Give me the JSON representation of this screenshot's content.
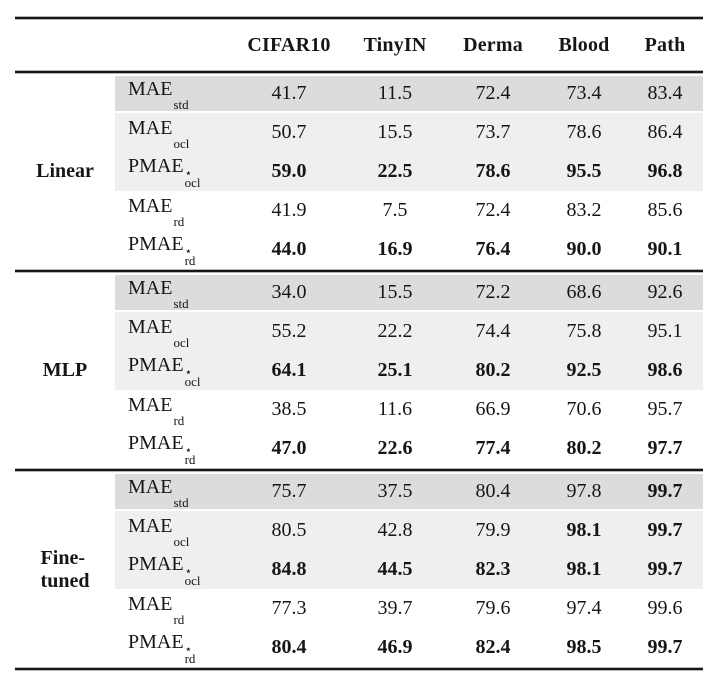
{
  "table": {
    "columns": [
      "CIFAR10",
      "TinyIN",
      "Derma",
      "Blood",
      "Path"
    ],
    "shading": {
      "dark": "#dcdcdc",
      "light": "#efefef"
    },
    "groups": [
      {
        "label": "Linear",
        "rows": [
          {
            "base": "MAE",
            "sup": "",
            "sub": "std",
            "values": [
              "41.7",
              "11.5",
              "72.4",
              "73.4",
              "83.4"
            ],
            "bold": [
              false,
              false,
              false,
              false,
              false
            ]
          },
          {
            "base": "MAE",
            "sup": "",
            "sub": "ocl",
            "values": [
              "50.7",
              "15.5",
              "73.7",
              "78.6",
              "86.4"
            ],
            "bold": [
              false,
              false,
              false,
              false,
              false
            ]
          },
          {
            "base": "PMAE",
            "sup": "⋆",
            "sub": "ocl",
            "values": [
              "59.0",
              "22.5",
              "78.6",
              "95.5",
              "96.8"
            ],
            "bold": [
              true,
              true,
              true,
              true,
              true
            ]
          },
          {
            "base": "MAE",
            "sup": "",
            "sub": "rd",
            "values": [
              "41.9",
              "7.5",
              "72.4",
              "83.2",
              "85.6"
            ],
            "bold": [
              false,
              false,
              false,
              false,
              false
            ]
          },
          {
            "base": "PMAE",
            "sup": "⋆",
            "sub": "rd",
            "values": [
              "44.0",
              "16.9",
              "76.4",
              "90.0",
              "90.1"
            ],
            "bold": [
              true,
              true,
              true,
              true,
              true
            ]
          }
        ]
      },
      {
        "label": "MLP",
        "rows": [
          {
            "base": "MAE",
            "sup": "",
            "sub": "std",
            "values": [
              "34.0",
              "15.5",
              "72.2",
              "68.6",
              "92.6"
            ],
            "bold": [
              false,
              false,
              false,
              false,
              false
            ]
          },
          {
            "base": "MAE",
            "sup": "",
            "sub": "ocl",
            "values": [
              "55.2",
              "22.2",
              "74.4",
              "75.8",
              "95.1"
            ],
            "bold": [
              false,
              false,
              false,
              false,
              false
            ]
          },
          {
            "base": "PMAE",
            "sup": "⋆",
            "sub": "ocl",
            "values": [
              "64.1",
              "25.1",
              "80.2",
              "92.5",
              "98.6"
            ],
            "bold": [
              true,
              true,
              true,
              true,
              true
            ]
          },
          {
            "base": "MAE",
            "sup": "",
            "sub": "rd",
            "values": [
              "38.5",
              "11.6",
              "66.9",
              "70.6",
              "95.7"
            ],
            "bold": [
              false,
              false,
              false,
              false,
              false
            ]
          },
          {
            "base": "PMAE",
            "sup": "⋆",
            "sub": "rd",
            "values": [
              "47.0",
              "22.6",
              "77.4",
              "80.2",
              "97.7"
            ],
            "bold": [
              true,
              true,
              true,
              true,
              true
            ]
          }
        ]
      },
      {
        "label": "Fine-\ntuned",
        "rows": [
          {
            "base": "MAE",
            "sup": "",
            "sub": "std",
            "values": [
              "75.7",
              "37.5",
              "80.4",
              "97.8",
              "99.7"
            ],
            "bold": [
              false,
              false,
              false,
              false,
              true
            ]
          },
          {
            "base": "MAE",
            "sup": "",
            "sub": "ocl",
            "values": [
              "80.5",
              "42.8",
              "79.9",
              "98.1",
              "99.7"
            ],
            "bold": [
              false,
              false,
              false,
              true,
              true
            ]
          },
          {
            "base": "PMAE",
            "sup": "⋆",
            "sub": "ocl",
            "values": [
              "84.8",
              "44.5",
              "82.3",
              "98.1",
              "99.7"
            ],
            "bold": [
              true,
              true,
              true,
              true,
              true
            ]
          },
          {
            "base": "MAE",
            "sup": "",
            "sub": "rd",
            "values": [
              "77.3",
              "39.7",
              "79.6",
              "97.4",
              "99.6"
            ],
            "bold": [
              false,
              false,
              false,
              false,
              false
            ]
          },
          {
            "base": "PMAE",
            "sup": "⋆",
            "sub": "rd",
            "values": [
              "80.4",
              "46.9",
              "82.4",
              "98.5",
              "99.7"
            ],
            "bold": [
              true,
              true,
              true,
              true,
              true
            ]
          }
        ]
      }
    ]
  }
}
